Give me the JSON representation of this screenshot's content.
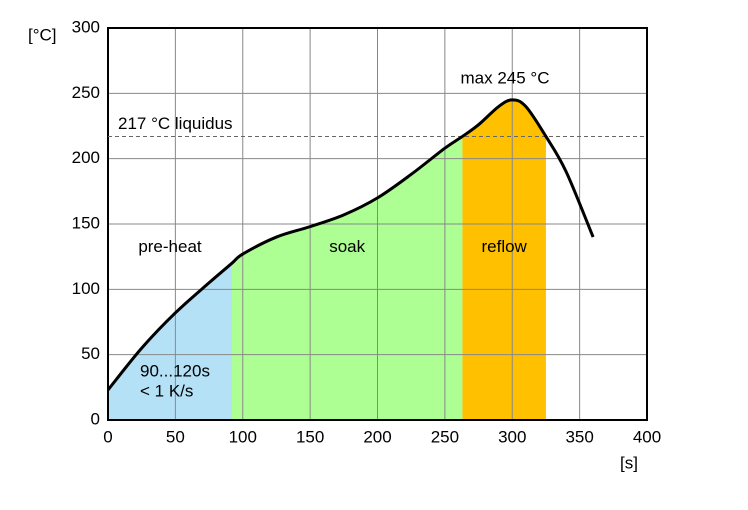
{
  "chart_data": {
    "type": "line",
    "x": [
      0,
      25,
      50,
      75,
      92,
      100,
      125,
      150,
      175,
      200,
      225,
      250,
      263,
      275,
      290,
      300,
      310,
      325,
      340,
      360
    ],
    "values": [
      23,
      55,
      82,
      105,
      120,
      127,
      140,
      148,
      157,
      170,
      188,
      208,
      217,
      226,
      240,
      245,
      240,
      217,
      190,
      140
    ],
    "color": "#000000",
    "xlim": [
      0,
      400
    ],
    "ylim": [
      0,
      300
    ],
    "xticks": [
      0,
      50,
      100,
      150,
      200,
      250,
      300,
      350,
      400
    ],
    "yticks": [
      0,
      50,
      100,
      150,
      200,
      250,
      300
    ],
    "grid": true,
    "x_label": "[s]",
    "y_label": "[°C]",
    "zones": [
      {
        "name": "pre-heat",
        "start": 0,
        "end": 92,
        "color": "#b5e1f7"
      },
      {
        "name": "soak",
        "start": 92,
        "end": 263,
        "color": "#adff94"
      },
      {
        "name": "reflow",
        "start": 263,
        "end": 325,
        "color": "#ffc000"
      }
    ],
    "reference_line": {
      "value": 217,
      "label": "217 °C liquidus"
    },
    "peak_label": "max 245 °C",
    "duration_label": "90...120s",
    "rate_label": "< 1 K/s"
  }
}
